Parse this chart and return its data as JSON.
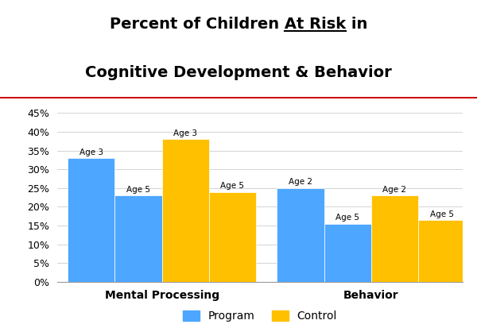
{
  "title_part1": "Percent of Children ",
  "title_underlined": "At Risk",
  "title_part2": " in",
  "title_line2": "Cognitive Development & Behavior",
  "categories": [
    "Mental Processing",
    "Behavior"
  ],
  "bar_labels": [
    [
      "Age 3",
      "Age 5",
      "Age 3",
      "Age 5"
    ],
    [
      "Age 2",
      "Age 5",
      "Age 2",
      "Age 5"
    ]
  ],
  "program_values": [
    0.33,
    0.23,
    0.25,
    0.155
  ],
  "control_values": [
    0.38,
    0.24,
    0.23,
    0.165
  ],
  "program_color": "#4DA6FF",
  "control_color": "#FFC000",
  "ylim": [
    0,
    0.475
  ],
  "yticks": [
    0,
    0.05,
    0.1,
    0.15,
    0.2,
    0.25,
    0.3,
    0.35,
    0.4,
    0.45
  ],
  "ytick_labels": [
    "0%",
    "5%",
    "10%",
    "15%",
    "20%",
    "25%",
    "30%",
    "35%",
    "40%",
    "45%"
  ],
  "legend_program": "Program",
  "legend_control": "Control",
  "separator_line_color": "#CC0000",
  "background_color": "#FFFFFF",
  "bar_width": 0.18,
  "group_positions": [
    0.35,
    1.15
  ]
}
